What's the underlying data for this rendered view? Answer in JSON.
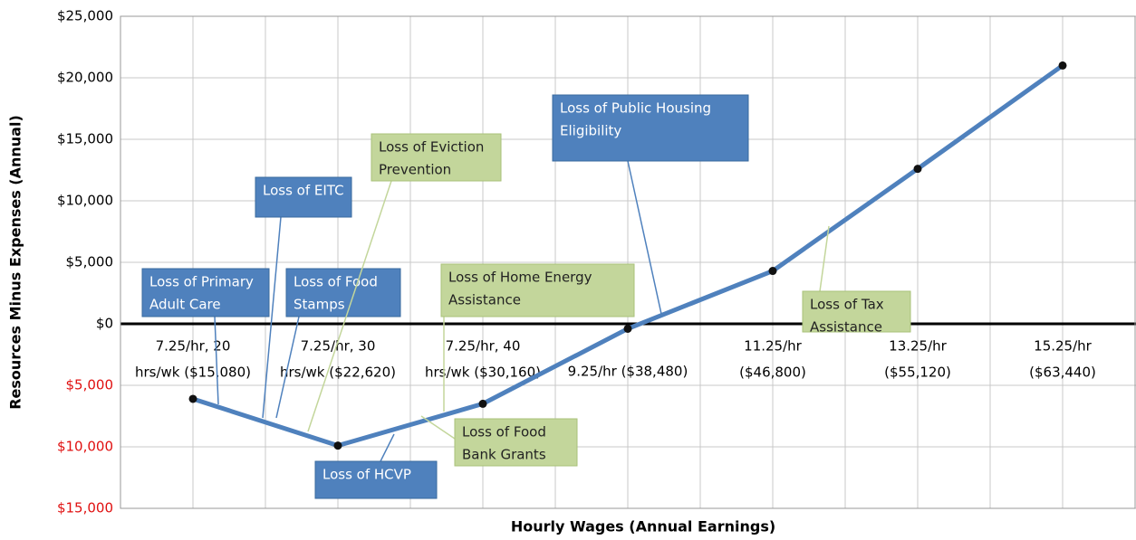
{
  "chart_data": {
    "type": "line",
    "x_label": "Hourly Wages (Annual Earnings)",
    "y_label": "Resources Minus Expenses (Annual)",
    "categories": [
      [
        "7.25/hr, 20",
        "hrs/wk ($15,080)"
      ],
      [
        "7.25/hr, 30",
        "hrs/wk ($22,620)"
      ],
      [
        "7.25/hr, 40",
        "hrs/wk ($30,160)"
      ],
      [
        "9.25/hr ($38,480)"
      ],
      [
        "11.25/hr",
        "($46,800)"
      ],
      [
        "13.25/hr",
        "($55,120)"
      ],
      [
        "15.25/hr",
        "($63,440)"
      ]
    ],
    "series": [
      {
        "name": "Resources Minus Expenses",
        "color": "#4f81bd",
        "values": [
          -6100,
          -9900,
          -6500,
          -400,
          4300,
          12600,
          21000
        ]
      }
    ],
    "ylim": [
      -15000,
      25000
    ],
    "yticks": [
      {
        "value": -15000,
        "label": "$15,000"
      },
      {
        "value": -10000,
        "label": "$10,000"
      },
      {
        "value": -5000,
        "label": "$5,000"
      },
      {
        "value": 0,
        "label": "$0"
      },
      {
        "value": 5000,
        "label": "$5,000"
      },
      {
        "value": 10000,
        "label": "$10,000"
      },
      {
        "value": 15000,
        "label": "$15,000"
      },
      {
        "value": 20000,
        "label": "$20,000"
      },
      {
        "value": 25000,
        "label": "$25,000"
      }
    ],
    "negative_tick_color": "#e01010",
    "grid": true,
    "annotations": [
      {
        "lines": [
          "Loss of Primary",
          "Adult Care"
        ],
        "color": "#4f81bd"
      },
      {
        "lines": [
          "Loss of EITC"
        ],
        "color": "#4f81bd"
      },
      {
        "lines": [
          "Loss of Food",
          "Stamps"
        ],
        "color": "#4f81bd"
      },
      {
        "lines": [
          "Loss of Eviction",
          "Prevention"
        ],
        "color": "#c3d69b"
      },
      {
        "lines": [
          "Loss of Home Energy",
          "Assistance"
        ],
        "color": "#c3d69b"
      },
      {
        "lines": [
          "Loss of Public Housing",
          "Eligibility"
        ],
        "color": "#4f81bd"
      },
      {
        "lines": [
          "Loss of HCVP"
        ],
        "color": "#4f81bd"
      },
      {
        "lines": [
          "Loss of Food",
          "Bank Grants"
        ],
        "color": "#c3d69b"
      },
      {
        "lines": [
          "Loss of Tax",
          "Assistance"
        ],
        "color": "#c3d69b"
      }
    ]
  }
}
